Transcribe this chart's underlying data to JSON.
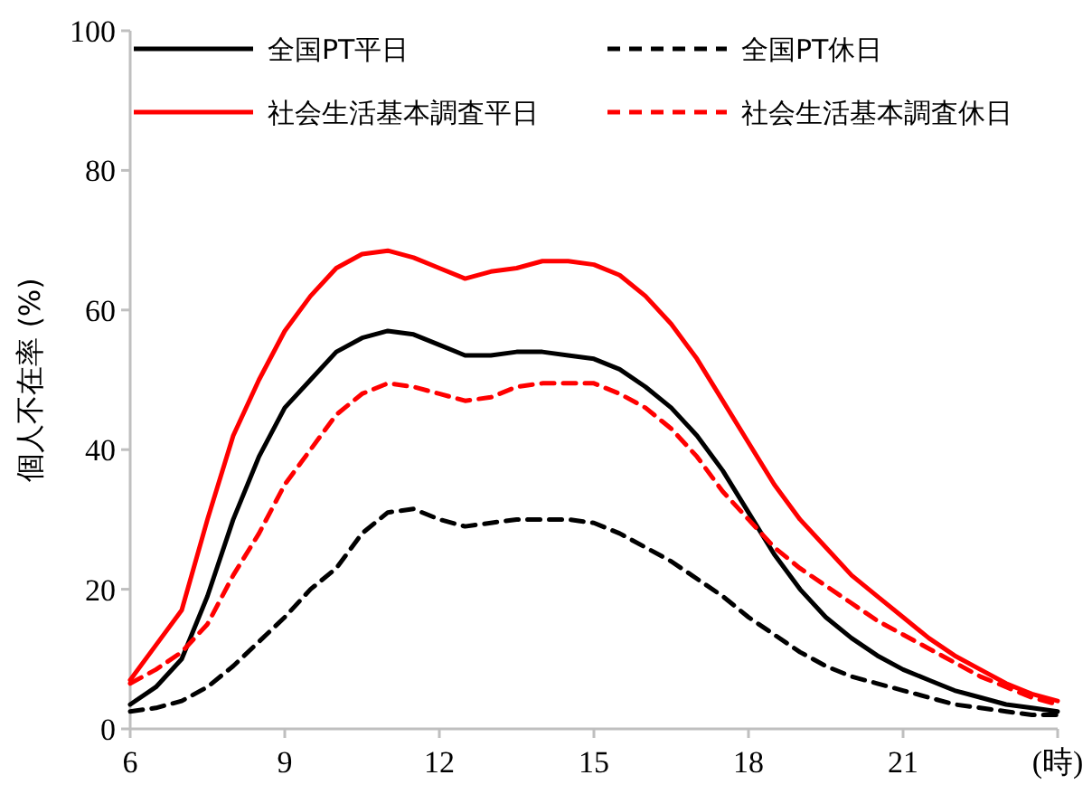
{
  "chart_data": {
    "type": "line",
    "ylabel": "個人不在率 (%)",
    "x": [
      6,
      6.5,
      7,
      7.5,
      8,
      8.5,
      9,
      9.5,
      10,
      10.5,
      11,
      11.5,
      12,
      12.5,
      13,
      13.5,
      14,
      14.5,
      15,
      15.5,
      16,
      16.5,
      17,
      17.5,
      18,
      18.5,
      19,
      19.5,
      20,
      20.5,
      21,
      21.5,
      22,
      22.5,
      23,
      23.5,
      24
    ],
    "xlim": [
      6,
      24
    ],
    "xticks": [
      6,
      9,
      12,
      15,
      18,
      21,
      {
        "value": 24,
        "label": "(時)"
      }
    ],
    "ylim": [
      0,
      100
    ],
    "yticks": [
      0,
      20,
      40,
      60,
      80,
      100
    ],
    "grid": false,
    "legend": "top",
    "marker": "none",
    "series": [
      {
        "name": "全国PT平日",
        "color": "#000000",
        "line_style": "solid",
        "values": [
          3.5,
          6,
          10,
          19,
          30,
          39,
          46,
          50,
          54,
          56,
          57,
          56.5,
          55,
          53.5,
          53.5,
          54,
          54,
          53.5,
          53,
          51.5,
          49,
          46,
          42,
          37,
          31,
          25,
          20,
          16,
          13,
          10.5,
          8.5,
          7,
          5.5,
          4.5,
          3.5,
          3,
          2.5
        ]
      },
      {
        "name": "全国PT休日",
        "color": "#000000",
        "line_style": "dashed",
        "values": [
          2.5,
          3,
          4,
          6,
          9,
          12.5,
          16,
          20,
          23,
          28,
          31,
          31.5,
          30,
          29,
          29.5,
          30,
          30,
          30,
          29.5,
          28,
          26,
          24,
          21.5,
          19,
          16,
          13.5,
          11,
          9,
          7.5,
          6.5,
          5.5,
          4.5,
          3.5,
          3,
          2.5,
          2,
          2
        ]
      },
      {
        "name": "社会生活基本調査平日",
        "color": "#ff0000",
        "line_style": "solid",
        "values": [
          7,
          12,
          17,
          30,
          42,
          50,
          57,
          62,
          66,
          68,
          68.5,
          67.5,
          66,
          64.5,
          65.5,
          66,
          67,
          67,
          66.5,
          65,
          62,
          58,
          53,
          47,
          41,
          35,
          30,
          26,
          22,
          19,
          16,
          13,
          10.5,
          8.5,
          6.5,
          5,
          4
        ]
      },
      {
        "name": "社会生活基本調査休日",
        "color": "#ff0000",
        "line_style": "dashed",
        "values": [
          6.5,
          8.5,
          11,
          15,
          22,
          28,
          35,
          40,
          45,
          48,
          49.5,
          49,
          48,
          47,
          47.5,
          49,
          49.5,
          49.5,
          49.5,
          48,
          46,
          43,
          39,
          34,
          30,
          26,
          23,
          20.5,
          18,
          15.5,
          13.5,
          11.5,
          9.5,
          7.5,
          6,
          4.5,
          3.5
        ]
      }
    ]
  }
}
